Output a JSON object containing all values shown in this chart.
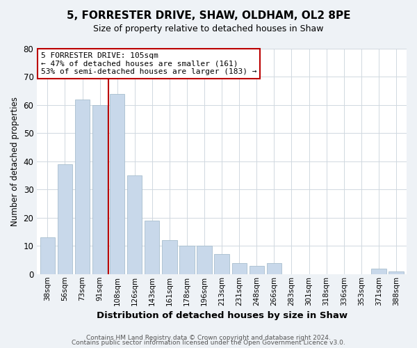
{
  "title": "5, FORRESTER DRIVE, SHAW, OLDHAM, OL2 8PE",
  "subtitle": "Size of property relative to detached houses in Shaw",
  "xlabel": "Distribution of detached houses by size in Shaw",
  "ylabel": "Number of detached properties",
  "bar_color": "#c8d8ea",
  "bar_edge_color": "#a8bece",
  "categories": [
    "38sqm",
    "56sqm",
    "73sqm",
    "91sqm",
    "108sqm",
    "126sqm",
    "143sqm",
    "161sqm",
    "178sqm",
    "196sqm",
    "213sqm",
    "231sqm",
    "248sqm",
    "266sqm",
    "283sqm",
    "301sqm",
    "318sqm",
    "336sqm",
    "353sqm",
    "371sqm",
    "388sqm"
  ],
  "values": [
    13,
    39,
    62,
    60,
    64,
    35,
    19,
    12,
    10,
    10,
    7,
    4,
    3,
    4,
    0,
    0,
    0,
    0,
    0,
    2,
    1
  ],
  "ylim": [
    0,
    80
  ],
  "yticks": [
    0,
    10,
    20,
    30,
    40,
    50,
    60,
    70,
    80
  ],
  "annotation_line1": "5 FORRESTER DRIVE: 105sqm",
  "annotation_line2": "← 47% of detached houses are smaller (161)",
  "annotation_line3": "53% of semi-detached houses are larger (183) →",
  "vline_color": "#bb0000",
  "box_color": "#bb0000",
  "footer1": "Contains HM Land Registry data © Crown copyright and database right 2024.",
  "footer2": "Contains public sector information licensed under the Open Government Licence v3.0.",
  "background_color": "#eef2f6",
  "plot_bg_color": "#ffffff",
  "grid_color": "#d0d8e0",
  "title_fontsize": 11,
  "subtitle_fontsize": 9
}
